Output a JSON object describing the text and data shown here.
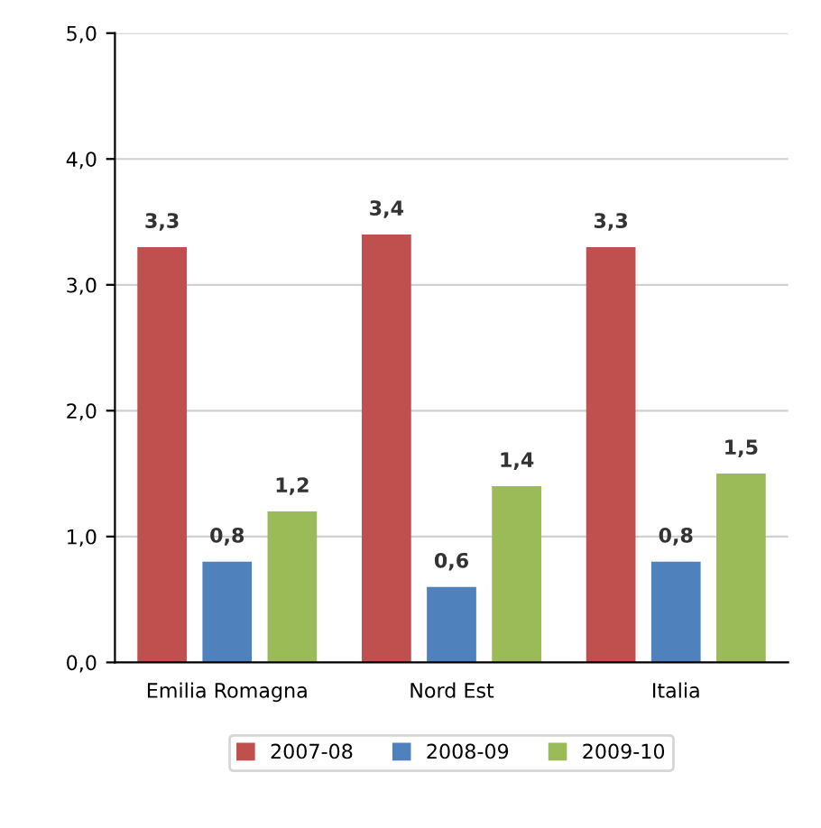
{
  "chart_data": {
    "type": "bar",
    "categories": [
      "Emilia Romagna",
      "Nord Est",
      "Italia"
    ],
    "series": [
      {
        "name": "2007-08",
        "color": "#c0504d",
        "values": [
          3.3,
          3.4,
          3.3
        ],
        "value_labels": [
          "3,3",
          "3,4",
          "3,3"
        ]
      },
      {
        "name": "2008-09",
        "color": "#4f81bd",
        "values": [
          0.8,
          0.6,
          0.8
        ],
        "value_labels": [
          "0,8",
          "0,6",
          "0,8"
        ]
      },
      {
        "name": "2009-10",
        "color": "#9bbb59",
        "values": [
          1.2,
          1.4,
          1.5
        ],
        "value_labels": [
          "1,2",
          "1,4",
          "1,5"
        ]
      }
    ],
    "ylim": [
      0,
      5
    ],
    "yticks": [
      {
        "value": 0,
        "label": "0,0"
      },
      {
        "value": 1,
        "label": "1,0"
      },
      {
        "value": 2,
        "label": "2,0"
      },
      {
        "value": 3,
        "label": "3,0"
      },
      {
        "value": 4,
        "label": "4,0"
      },
      {
        "value": 5,
        "label": "5,0"
      }
    ],
    "grid": "y",
    "legend": "bottom"
  }
}
